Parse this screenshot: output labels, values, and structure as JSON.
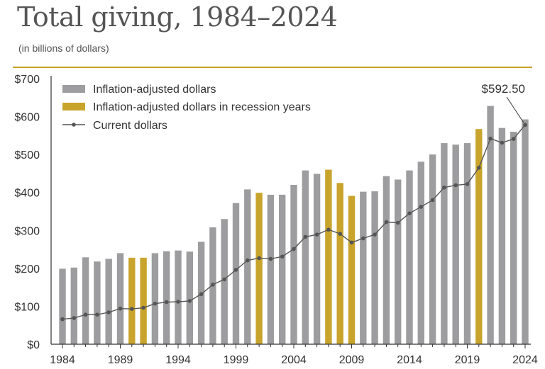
{
  "header": {
    "title": "Total giving, 1984–2024",
    "subtitle": "(in billions of dollars)"
  },
  "colors": {
    "gray_bar": "#9d9d9f",
    "recession_bar": "#c9a42c",
    "current_line": "#555555",
    "rule": "#c9a227"
  },
  "chart_data": {
    "type": "bar",
    "title": "Total giving, 1984–2024",
    "subtitle": "(in billions of dollars)",
    "xlabel": "",
    "ylabel": "",
    "ylim": [
      0,
      700
    ],
    "y_ticks": [
      "$0",
      "$100",
      "$200",
      "$300",
      "$400",
      "$500",
      "$600",
      "$700"
    ],
    "x_ticks": [
      "1984",
      "1989",
      "1994",
      "1999",
      "2004",
      "2009",
      "2014",
      "2019",
      "2024"
    ],
    "categories": [
      1984,
      1985,
      1986,
      1987,
      1988,
      1989,
      1990,
      1991,
      1992,
      1993,
      1994,
      1995,
      1996,
      1997,
      1998,
      1999,
      2000,
      2001,
      2002,
      2003,
      2004,
      2005,
      2006,
      2007,
      2008,
      2009,
      2010,
      2011,
      2012,
      2013,
      2014,
      2015,
      2016,
      2017,
      2018,
      2019,
      2020,
      2021,
      2022,
      2023,
      2024
    ],
    "series": [
      {
        "name": "Inflation-adjusted dollars",
        "type": "bar",
        "values": [
          199,
          202,
          229,
          218,
          225,
          240,
          228,
          228,
          240,
          245,
          247,
          244,
          270,
          308,
          330,
          372,
          408,
          399,
          394,
          394,
          420,
          458,
          449,
          460,
          425,
          391,
          402,
          403,
          443,
          434,
          458,
          481,
          500,
          530,
          526,
          530,
          567,
          628,
          570,
          560,
          592.5
        ]
      },
      {
        "name": "Inflation-adjusted dollars in recession years",
        "type": "bar-highlight",
        "years": [
          1990,
          1991,
          2001,
          2007,
          2008,
          2009,
          2020
        ]
      },
      {
        "name": "Current dollars",
        "type": "line",
        "values": [
          66,
          69,
          78,
          78,
          84,
          94,
          93,
          96,
          107,
          111,
          112,
          114,
          132,
          157,
          171,
          196,
          221,
          227,
          225,
          231,
          251,
          283,
          289,
          302,
          291,
          268,
          279,
          289,
          322,
          320,
          345,
          362,
          380,
          413,
          419,
          422,
          465,
          542,
          531,
          541,
          578
        ]
      }
    ],
    "legend": {
      "position": "top-left",
      "entries": [
        "Inflation-adjusted dollars",
        "Inflation-adjusted dollars in recession years",
        "Current dollars"
      ]
    },
    "annotations": [
      {
        "text": "$592.50",
        "year": 2024
      }
    ],
    "grid": false
  }
}
